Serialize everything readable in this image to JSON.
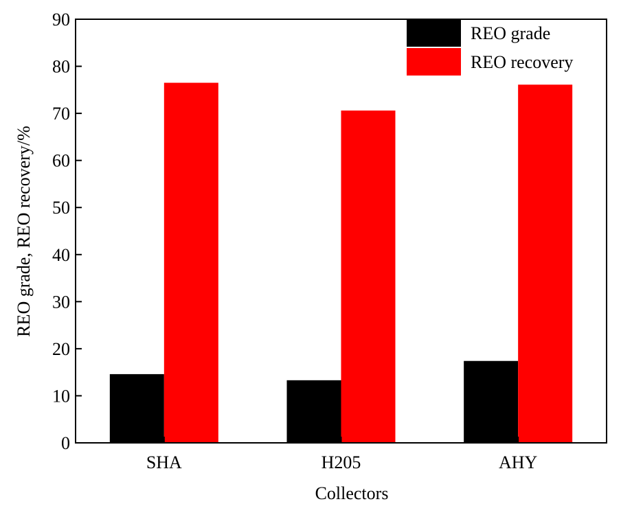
{
  "chart_data": {
    "type": "bar",
    "title": "",
    "xlabel": "Collectors",
    "ylabel": "REO grade, REO recovery/%",
    "categories": [
      "SHA",
      "H205",
      "AHY"
    ],
    "series": [
      {
        "name": "REO grade",
        "color": "#000000",
        "values": [
          14.6,
          13.3,
          17.4
        ]
      },
      {
        "name": "REO recovery",
        "color": "#ff0000",
        "values": [
          76.5,
          70.6,
          76.1
        ]
      }
    ],
    "ylim": [
      0,
      90
    ],
    "yticks": [
      0,
      10,
      20,
      30,
      40,
      50,
      60,
      70,
      80,
      90
    ],
    "grid": false,
    "legend_position": "top-right"
  }
}
